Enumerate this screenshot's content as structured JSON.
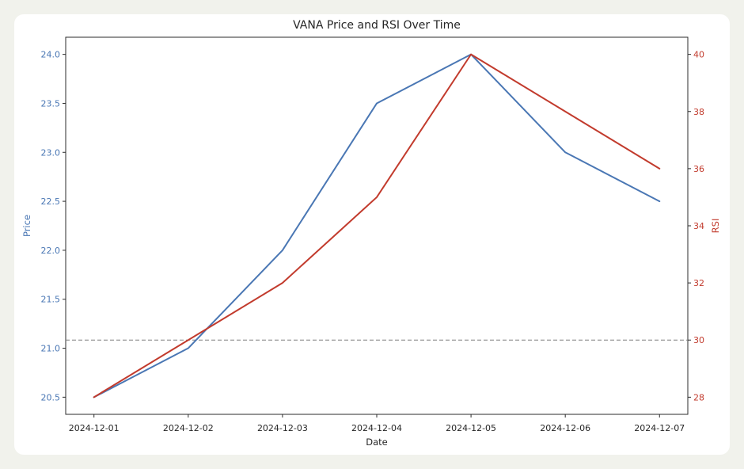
{
  "chart_data": {
    "type": "line",
    "title": "VANA Price and RSI Over Time",
    "xlabel": "Date",
    "categories": [
      "2024-12-01",
      "2024-12-02",
      "2024-12-03",
      "2024-12-04",
      "2024-12-05",
      "2024-12-06",
      "2024-12-07"
    ],
    "series": [
      {
        "name": "Price",
        "axis": "left_axis",
        "color": "#4a77b4",
        "values": [
          20.5,
          21.0,
          22.0,
          23.5,
          24.0,
          23.0,
          22.5
        ]
      },
      {
        "name": "RSI",
        "axis": "right_axis",
        "color": "#c23b2d",
        "values": [
          28,
          30,
          32,
          35,
          40,
          38,
          36
        ]
      }
    ],
    "left_axis": {
      "label": "Price",
      "min": 20.5,
      "max": 24.0,
      "ticks": [
        "20.5",
        "21.0",
        "21.5",
        "22.0",
        "22.5",
        "23.0",
        "23.5",
        "24.0"
      ],
      "color": "#4a77b4"
    },
    "right_axis": {
      "label": "RSI",
      "min": 28,
      "max": 40,
      "ticks": [
        "28",
        "30",
        "32",
        "34",
        "36",
        "38",
        "40"
      ],
      "color": "#c23b2d"
    },
    "reference_line": {
      "axis": "right_axis",
      "value": 30,
      "style": "dashed",
      "color": "#7f7f7f"
    },
    "grid": false,
    "legend": "none",
    "colors": {
      "background": "#f1f2ec",
      "card": "#ffffff",
      "spine": "#2b2b2b",
      "tick_text": "#262626"
    }
  }
}
